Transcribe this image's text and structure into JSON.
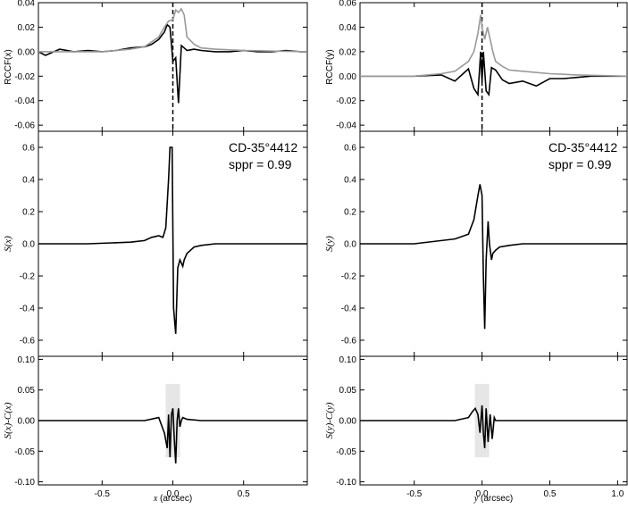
{
  "chart_data": [
    {
      "type": "line",
      "panel": "top-left",
      "ylabel": "RCCF(x)",
      "ylim": [
        -0.065,
        0.04
      ],
      "yticks": [
        "0.04",
        "0.02",
        "0.00",
        "-0.02",
        "-0.04",
        "-0.06"
      ],
      "xlim": [
        -0.95,
        0.95
      ],
      "xticks": [],
      "vline_x": 0.0,
      "series": [
        {
          "color": "#000000",
          "x": [
            -0.95,
            -0.9,
            -0.8,
            -0.7,
            -0.6,
            -0.5,
            -0.4,
            -0.3,
            -0.2,
            -0.15,
            -0.1,
            -0.06,
            -0.04,
            -0.02,
            0.0,
            0.02,
            0.04,
            0.06,
            0.08,
            0.1,
            0.15,
            0.2,
            0.3,
            0.4,
            0.5,
            0.6,
            0.7,
            0.8,
            0.9,
            0.95
          ],
          "y": [
            0.0,
            -0.003,
            0.002,
            0.0,
            0.001,
            0.0,
            0.001,
            0.003,
            0.004,
            0.006,
            0.01,
            0.016,
            0.022,
            0.02,
            -0.008,
            -0.005,
            -0.042,
            0.005,
            0.003,
            0.001,
            0.002,
            0.001,
            0.0,
            0.0,
            0.001,
            0.0,
            0.0,
            0.001,
            0.0,
            0.0
          ]
        },
        {
          "color": "#999999",
          "x": [
            -0.95,
            -0.5,
            -0.3,
            -0.2,
            -0.1,
            -0.06,
            -0.03,
            0.0,
            0.02,
            0.04,
            0.06,
            0.08,
            0.1,
            0.15,
            0.2,
            0.3,
            0.5,
            0.95
          ],
          "y": [
            0.0,
            0.0,
            0.002,
            0.004,
            0.012,
            0.02,
            0.025,
            0.026,
            0.034,
            0.032,
            0.035,
            0.03,
            0.012,
            0.006,
            0.003,
            0.002,
            0.001,
            0.0
          ]
        }
      ]
    },
    {
      "type": "line",
      "panel": "mid-left",
      "ylabel": "S(x)",
      "ylim": [
        -0.7,
        0.7
      ],
      "yticks": [
        "0.6",
        "0.4",
        "0.2",
        "0.0",
        "-0.2",
        "-0.4",
        "-0.6"
      ],
      "xlim": [
        -0.95,
        0.95
      ],
      "xticks": [],
      "annotation": [
        "CD-35°4412",
        "sppr = 0.99"
      ],
      "series": [
        {
          "color": "#000000",
          "x": [
            -0.95,
            -0.6,
            -0.3,
            -0.2,
            -0.15,
            -0.1,
            -0.07,
            -0.05,
            -0.03,
            -0.02,
            -0.005,
            0.0,
            0.005,
            0.02,
            0.035,
            0.05,
            0.06,
            0.07,
            0.08,
            0.1,
            0.15,
            0.2,
            0.3,
            0.6,
            0.95
          ],
          "y": [
            0.0,
            0.0,
            0.01,
            0.02,
            0.04,
            0.05,
            0.04,
            0.1,
            0.4,
            0.6,
            0.6,
            0.1,
            -0.4,
            -0.56,
            -0.15,
            -0.1,
            -0.12,
            -0.14,
            -0.1,
            -0.06,
            -0.02,
            -0.01,
            0.0,
            0.0,
            0.0
          ]
        }
      ]
    },
    {
      "type": "line",
      "panel": "bottom-left",
      "ylabel": "S(x)-C(x)",
      "ylim": [
        -0.105,
        0.105
      ],
      "yticks": [
        "0.10",
        "0.05",
        "0.00",
        "-0.05",
        "-0.10"
      ],
      "xlim": [
        -0.95,
        0.95
      ],
      "xticks": [
        "-0.5",
        "0.0",
        "0.5"
      ],
      "xlabel_var": "x",
      "xlabel_unit": " (arcsec)",
      "series": [
        {
          "color": "#000000",
          "x": [
            -0.95,
            -0.2,
            -0.1,
            -0.06,
            -0.04,
            -0.03,
            -0.02,
            -0.01,
            0.0,
            0.01,
            0.02,
            0.03,
            0.04,
            0.05,
            0.06,
            0.07,
            0.1,
            0.2,
            0.95
          ],
          "y": [
            0.0,
            0.0,
            0.005,
            -0.02,
            -0.045,
            0.01,
            -0.06,
            0.01,
            0.02,
            -0.03,
            -0.07,
            0.0,
            0.02,
            -0.01,
            0.0,
            0.005,
            0.002,
            0.0,
            0.0
          ]
        }
      ]
    },
    {
      "type": "line",
      "panel": "top-right",
      "ylabel": "RCCF(y)",
      "ylim": [
        -0.045,
        0.06
      ],
      "yticks": [
        "0.06",
        "0.04",
        "0.02",
        "0.00",
        "-0.02",
        "-0.04"
      ],
      "xlim": [
        -0.9,
        1.07
      ],
      "xticks": [],
      "vline_x": 0.0,
      "series": [
        {
          "color": "#000000",
          "x": [
            -0.9,
            -0.5,
            -0.3,
            -0.2,
            -0.1,
            -0.06,
            -0.03,
            -0.01,
            0.0,
            0.01,
            0.03,
            0.05,
            0.07,
            0.1,
            0.15,
            0.2,
            0.3,
            0.4,
            0.5,
            0.6,
            0.7,
            0.8,
            1.07
          ],
          "y": [
            0.0,
            0.0,
            0.001,
            -0.004,
            0.006,
            -0.01,
            -0.015,
            0.02,
            -0.005,
            0.02,
            -0.012,
            -0.015,
            0.007,
            0.005,
            -0.003,
            -0.006,
            -0.004,
            -0.008,
            -0.002,
            -0.002,
            -0.001,
            0.0,
            0.0
          ]
        },
        {
          "color": "#999999",
          "x": [
            -0.9,
            -0.5,
            -0.3,
            -0.2,
            -0.1,
            -0.06,
            -0.03,
            -0.01,
            0.0,
            0.02,
            0.04,
            0.06,
            0.08,
            0.1,
            0.15,
            0.2,
            0.3,
            0.5,
            0.7,
            1.07
          ],
          "y": [
            0.0,
            0.0,
            0.002,
            0.004,
            0.012,
            0.02,
            0.035,
            0.05,
            0.04,
            0.03,
            0.04,
            0.03,
            0.02,
            0.012,
            0.008,
            0.005,
            0.004,
            0.002,
            0.001,
            0.0
          ]
        }
      ]
    },
    {
      "type": "line",
      "panel": "mid-right",
      "ylabel": "S(y)",
      "ylim": [
        -0.7,
        0.7
      ],
      "yticks": [
        "0.6",
        "0.4",
        "0.2",
        "0.0",
        "-0.2",
        "-0.4",
        "-0.6"
      ],
      "xlim": [
        -0.9,
        1.07
      ],
      "xticks": [],
      "annotation": [
        "CD-35°4412",
        "sppr = 0.99"
      ],
      "series": [
        {
          "color": "#000000",
          "x": [
            -0.9,
            -0.5,
            -0.2,
            -0.1,
            -0.06,
            -0.03,
            -0.015,
            0.0,
            0.01,
            0.02,
            0.03,
            0.045,
            0.055,
            0.07,
            0.08,
            0.1,
            0.13,
            0.2,
            0.3,
            0.5,
            1.07
          ],
          "y": [
            0.0,
            0.0,
            0.03,
            0.06,
            0.15,
            0.3,
            0.37,
            0.3,
            -0.2,
            -0.53,
            -0.1,
            0.14,
            0.0,
            -0.1,
            -0.06,
            -0.04,
            -0.02,
            -0.01,
            0.0,
            0.0,
            0.0
          ]
        }
      ]
    },
    {
      "type": "line",
      "panel": "bottom-right",
      "ylabel": "S(y)-C(y)",
      "ylim": [
        -0.105,
        0.105
      ],
      "yticks": [
        "0.10",
        "0.05",
        "0.00",
        "-0.05",
        "-0.10"
      ],
      "xlim": [
        -0.9,
        1.07
      ],
      "xticks": [
        "-0.5",
        "0.0",
        "0.5",
        "1.0"
      ],
      "xlabel_var": "y",
      "xlabel_unit": " (arcsec)",
      "series": [
        {
          "color": "#000000",
          "x": [
            -0.9,
            -0.2,
            -0.1,
            -0.07,
            -0.05,
            -0.03,
            -0.015,
            0.0,
            0.01,
            0.02,
            0.03,
            0.045,
            0.06,
            0.075,
            0.09,
            0.1,
            0.15,
            1.07
          ],
          "y": [
            0.0,
            0.0,
            0.005,
            0.015,
            0.02,
            0.01,
            -0.02,
            0.025,
            -0.02,
            -0.045,
            0.02,
            -0.035,
            0.01,
            -0.03,
            0.005,
            0.0,
            0.0,
            0.0
          ]
        }
      ]
    }
  ]
}
